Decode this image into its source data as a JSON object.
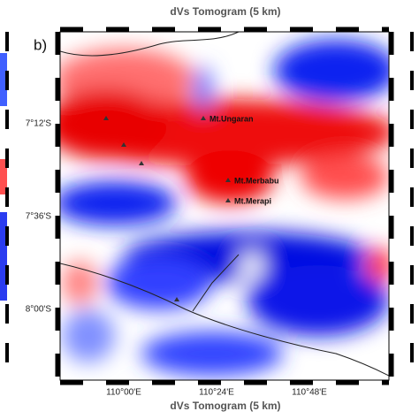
{
  "panel_label": "b)",
  "title_top": "dVs Tomogram (5 km)",
  "title_bottom": "dVs Tomogram (5 km)",
  "lat_labels": [
    "7°12'S",
    "7°36'S",
    "8°00'S"
  ],
  "lon_labels": [
    "110°00'E",
    "110°24'E",
    "110°48'E"
  ],
  "places": [
    "Mt.Ungaran",
    "Mt.Merbabu",
    "Mt.Merapi"
  ]
}
